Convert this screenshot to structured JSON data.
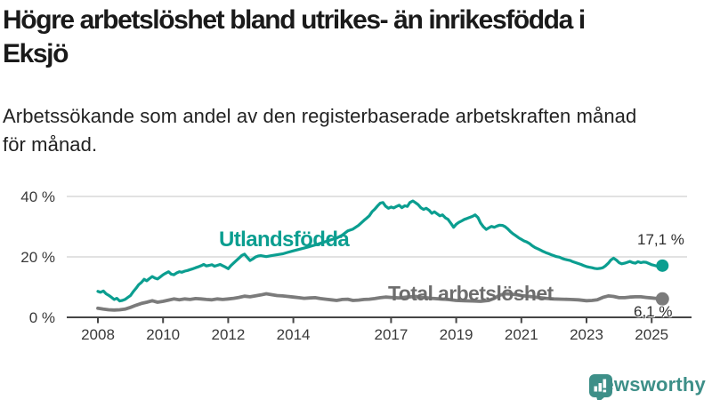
{
  "title_lines": [
    "Högre arbetslöshet bland utrikes- än inrikesfödda i",
    "Eksjö"
  ],
  "subtitle_lines": [
    "Arbetssökande som andel av den registerbaserade arbetskraften månad",
    "för månad."
  ],
  "branding": {
    "logo_text": "Newsworthy",
    "logo_icon": "newsworthy-bar-chart-bubble-icon"
  },
  "colors": {
    "background": "#ffffff",
    "accent_teal": "#0b9e90",
    "line_gray": "#7b7b7b",
    "grid": "#d9d9d9",
    "axis": "#454545",
    "tick_label": "#3a3a3a",
    "value_label": "#2d2d2d",
    "brand_teal": "#3d8f88"
  },
  "chart_data": {
    "type": "line",
    "unit": "%",
    "grid": "horizontal-only",
    "legend_position": "inline-labels",
    "x_axis": {
      "min": 2007.6,
      "max": 2026.2,
      "tick_years": [
        2008,
        2010,
        2012,
        2014,
        2017,
        2019,
        2021,
        2023,
        2025
      ],
      "tick_labels": [
        "2008",
        "2010",
        "2012",
        "2014",
        "2017",
        "2019",
        "2021",
        "2023",
        "2025"
      ]
    },
    "y_axis": {
      "min": 0,
      "max": 42,
      "tick_values": [
        0,
        20,
        40
      ],
      "tick_labels": [
        "0 %",
        "20 %",
        "40 %"
      ]
    },
    "series": [
      {
        "name": "Utlandsfödda",
        "color": "#0b9e90",
        "end_label": "17,1 %",
        "end_value": 17.1,
        "points": [
          [
            2008.0,
            8.6
          ],
          [
            2008.08,
            8.3
          ],
          [
            2008.17,
            8.7
          ],
          [
            2008.25,
            7.8
          ],
          [
            2008.33,
            7.3
          ],
          [
            2008.42,
            6.6
          ],
          [
            2008.5,
            5.9
          ],
          [
            2008.58,
            6.3
          ],
          [
            2008.67,
            5.4
          ],
          [
            2008.75,
            5.6
          ],
          [
            2008.83,
            5.9
          ],
          [
            2008.92,
            6.6
          ],
          [
            2009.0,
            7.2
          ],
          [
            2009.08,
            8.4
          ],
          [
            2009.17,
            9.6
          ],
          [
            2009.25,
            10.8
          ],
          [
            2009.33,
            11.5
          ],
          [
            2009.42,
            12.6
          ],
          [
            2009.5,
            12.1
          ],
          [
            2009.58,
            12.8
          ],
          [
            2009.67,
            13.5
          ],
          [
            2009.75,
            13.0
          ],
          [
            2009.83,
            12.7
          ],
          [
            2009.92,
            13.4
          ],
          [
            2010.0,
            14.1
          ],
          [
            2010.08,
            14.6
          ],
          [
            2010.17,
            15.1
          ],
          [
            2010.25,
            14.3
          ],
          [
            2010.33,
            14.1
          ],
          [
            2010.42,
            14.7
          ],
          [
            2010.5,
            15.1
          ],
          [
            2010.58,
            14.9
          ],
          [
            2010.67,
            15.3
          ],
          [
            2010.75,
            15.5
          ],
          [
            2010.83,
            15.8
          ],
          [
            2010.92,
            16.1
          ],
          [
            2011.0,
            16.4
          ],
          [
            2011.08,
            16.7
          ],
          [
            2011.17,
            17.1
          ],
          [
            2011.25,
            17.5
          ],
          [
            2011.33,
            17.0
          ],
          [
            2011.42,
            17.2
          ],
          [
            2011.5,
            17.4
          ],
          [
            2011.58,
            16.9
          ],
          [
            2011.67,
            17.2
          ],
          [
            2011.75,
            17.5
          ],
          [
            2011.83,
            17.1
          ],
          [
            2011.92,
            16.6
          ],
          [
            2012.0,
            16.1
          ],
          [
            2012.08,
            17.1
          ],
          [
            2012.17,
            18.0
          ],
          [
            2012.25,
            18.8
          ],
          [
            2012.33,
            19.6
          ],
          [
            2012.42,
            20.5
          ],
          [
            2012.5,
            20.9
          ],
          [
            2012.58,
            19.9
          ],
          [
            2012.67,
            18.8
          ],
          [
            2012.75,
            19.3
          ],
          [
            2012.83,
            19.9
          ],
          [
            2012.92,
            20.3
          ],
          [
            2013.0,
            20.4
          ],
          [
            2013.17,
            20.1
          ],
          [
            2013.33,
            20.4
          ],
          [
            2013.5,
            20.7
          ],
          [
            2013.67,
            21.0
          ],
          [
            2013.83,
            21.5
          ],
          [
            2014.0,
            22.0
          ],
          [
            2014.25,
            22.7
          ],
          [
            2014.5,
            23.4
          ],
          [
            2014.75,
            24.2
          ],
          [
            2015.0,
            25.1
          ],
          [
            2015.17,
            25.7
          ],
          [
            2015.33,
            26.2
          ],
          [
            2015.5,
            27.2
          ],
          [
            2015.67,
            28.6
          ],
          [
            2015.83,
            29.2
          ],
          [
            2016.0,
            30.4
          ],
          [
            2016.08,
            31.2
          ],
          [
            2016.17,
            32.1
          ],
          [
            2016.25,
            32.8
          ],
          [
            2016.33,
            33.6
          ],
          [
            2016.42,
            35.0
          ],
          [
            2016.5,
            35.8
          ],
          [
            2016.58,
            36.8
          ],
          [
            2016.67,
            37.8
          ],
          [
            2016.75,
            38.0
          ],
          [
            2016.83,
            36.8
          ],
          [
            2016.92,
            36.1
          ],
          [
            2017.0,
            36.5
          ],
          [
            2017.08,
            36.2
          ],
          [
            2017.17,
            36.7
          ],
          [
            2017.25,
            37.1
          ],
          [
            2017.33,
            36.3
          ],
          [
            2017.42,
            36.9
          ],
          [
            2017.5,
            36.7
          ],
          [
            2017.58,
            38.0
          ],
          [
            2017.67,
            38.5
          ],
          [
            2017.75,
            37.9
          ],
          [
            2017.83,
            37.3
          ],
          [
            2017.92,
            36.2
          ],
          [
            2018.0,
            35.7
          ],
          [
            2018.08,
            36.1
          ],
          [
            2018.17,
            35.4
          ],
          [
            2018.25,
            34.4
          ],
          [
            2018.33,
            34.9
          ],
          [
            2018.42,
            34.2
          ],
          [
            2018.5,
            33.6
          ],
          [
            2018.58,
            33.9
          ],
          [
            2018.67,
            32.9
          ],
          [
            2018.75,
            32.4
          ],
          [
            2018.83,
            31.2
          ],
          [
            2018.92,
            29.8
          ],
          [
            2019.0,
            30.8
          ],
          [
            2019.08,
            31.4
          ],
          [
            2019.17,
            31.9
          ],
          [
            2019.25,
            32.4
          ],
          [
            2019.33,
            32.7
          ],
          [
            2019.42,
            33.1
          ],
          [
            2019.5,
            33.4
          ],
          [
            2019.58,
            33.9
          ],
          [
            2019.67,
            33.0
          ],
          [
            2019.75,
            31.2
          ],
          [
            2019.83,
            30.0
          ],
          [
            2019.92,
            29.1
          ],
          [
            2020.0,
            29.6
          ],
          [
            2020.08,
            30.1
          ],
          [
            2020.17,
            29.8
          ],
          [
            2020.25,
            30.2
          ],
          [
            2020.33,
            30.5
          ],
          [
            2020.42,
            30.4
          ],
          [
            2020.5,
            30.0
          ],
          [
            2020.58,
            29.3
          ],
          [
            2020.67,
            28.3
          ],
          [
            2020.75,
            27.6
          ],
          [
            2020.83,
            27.0
          ],
          [
            2020.92,
            26.3
          ],
          [
            2021.0,
            25.8
          ],
          [
            2021.08,
            25.3
          ],
          [
            2021.17,
            24.9
          ],
          [
            2021.25,
            24.4
          ],
          [
            2021.33,
            23.7
          ],
          [
            2021.42,
            23.1
          ],
          [
            2021.5,
            22.7
          ],
          [
            2021.58,
            22.3
          ],
          [
            2021.67,
            21.8
          ],
          [
            2021.75,
            21.4
          ],
          [
            2021.83,
            21.1
          ],
          [
            2021.92,
            20.7
          ],
          [
            2022.0,
            20.4
          ],
          [
            2022.08,
            20.1
          ],
          [
            2022.17,
            19.9
          ],
          [
            2022.25,
            19.5
          ],
          [
            2022.33,
            19.2
          ],
          [
            2022.42,
            19.0
          ],
          [
            2022.5,
            18.8
          ],
          [
            2022.58,
            18.4
          ],
          [
            2022.67,
            18.1
          ],
          [
            2022.75,
            17.8
          ],
          [
            2022.83,
            17.5
          ],
          [
            2022.92,
            17.1
          ],
          [
            2023.0,
            16.8
          ],
          [
            2023.08,
            16.6
          ],
          [
            2023.17,
            16.4
          ],
          [
            2023.25,
            16.2
          ],
          [
            2023.33,
            16.1
          ],
          [
            2023.42,
            16.2
          ],
          [
            2023.5,
            16.4
          ],
          [
            2023.58,
            17.0
          ],
          [
            2023.67,
            17.9
          ],
          [
            2023.75,
            19.0
          ],
          [
            2023.83,
            19.6
          ],
          [
            2023.92,
            18.9
          ],
          [
            2024.0,
            18.1
          ],
          [
            2024.08,
            17.7
          ],
          [
            2024.17,
            17.9
          ],
          [
            2024.25,
            18.2
          ],
          [
            2024.33,
            18.5
          ],
          [
            2024.42,
            18.1
          ],
          [
            2024.5,
            17.9
          ],
          [
            2024.58,
            18.4
          ],
          [
            2024.67,
            18.1
          ],
          [
            2024.75,
            18.3
          ],
          [
            2024.83,
            18.2
          ],
          [
            2024.92,
            17.8
          ],
          [
            2025.0,
            17.4
          ],
          [
            2025.08,
            17.2
          ],
          [
            2025.17,
            16.9
          ],
          [
            2025.25,
            16.8
          ],
          [
            2025.33,
            17.1
          ]
        ]
      },
      {
        "name": "Total arbetslöshet",
        "color": "#7b7b7b",
        "end_label": "6,1 %",
        "end_value": 6.1,
        "points": [
          [
            2008.0,
            3.0
          ],
          [
            2008.17,
            2.7
          ],
          [
            2008.33,
            2.5
          ],
          [
            2008.5,
            2.4
          ],
          [
            2008.67,
            2.5
          ],
          [
            2008.83,
            2.7
          ],
          [
            2009.0,
            3.3
          ],
          [
            2009.17,
            4.0
          ],
          [
            2009.33,
            4.6
          ],
          [
            2009.5,
            5.0
          ],
          [
            2009.67,
            5.5
          ],
          [
            2009.83,
            5.0
          ],
          [
            2010.0,
            5.3
          ],
          [
            2010.17,
            5.7
          ],
          [
            2010.33,
            6.1
          ],
          [
            2010.5,
            5.8
          ],
          [
            2010.67,
            6.1
          ],
          [
            2010.83,
            5.9
          ],
          [
            2011.0,
            6.2
          ],
          [
            2011.17,
            6.1
          ],
          [
            2011.33,
            5.9
          ],
          [
            2011.5,
            5.8
          ],
          [
            2011.67,
            6.1
          ],
          [
            2011.83,
            5.9
          ],
          [
            2012.0,
            6.1
          ],
          [
            2012.17,
            6.3
          ],
          [
            2012.33,
            6.6
          ],
          [
            2012.5,
            7.0
          ],
          [
            2012.67,
            6.8
          ],
          [
            2012.83,
            7.1
          ],
          [
            2013.0,
            7.4
          ],
          [
            2013.17,
            7.8
          ],
          [
            2013.33,
            7.5
          ],
          [
            2013.5,
            7.2
          ],
          [
            2013.67,
            7.1
          ],
          [
            2013.83,
            6.9
          ],
          [
            2014.0,
            6.7
          ],
          [
            2014.17,
            6.5
          ],
          [
            2014.33,
            6.3
          ],
          [
            2014.5,
            6.4
          ],
          [
            2014.67,
            6.5
          ],
          [
            2014.83,
            6.2
          ],
          [
            2015.0,
            6.0
          ],
          [
            2015.17,
            5.8
          ],
          [
            2015.33,
            5.6
          ],
          [
            2015.5,
            5.9
          ],
          [
            2015.67,
            6.0
          ],
          [
            2015.83,
            5.6
          ],
          [
            2016.0,
            5.7
          ],
          [
            2016.17,
            5.9
          ],
          [
            2016.33,
            6.0
          ],
          [
            2016.5,
            6.2
          ],
          [
            2016.67,
            6.5
          ],
          [
            2016.83,
            6.7
          ],
          [
            2017.0,
            6.6
          ],
          [
            2017.25,
            6.4
          ],
          [
            2017.5,
            6.7
          ],
          [
            2017.75,
            6.9
          ],
          [
            2018.0,
            6.6
          ],
          [
            2018.25,
            6.3
          ],
          [
            2018.5,
            6.1
          ],
          [
            2018.75,
            5.9
          ],
          [
            2019.0,
            5.6
          ],
          [
            2019.25,
            5.5
          ],
          [
            2019.5,
            5.4
          ],
          [
            2019.75,
            5.3
          ],
          [
            2020.0,
            5.6
          ],
          [
            2020.17,
            6.3
          ],
          [
            2020.33,
            7.3
          ],
          [
            2020.5,
            7.8
          ],
          [
            2020.67,
            7.7
          ],
          [
            2020.83,
            7.5
          ],
          [
            2021.0,
            7.2
          ],
          [
            2021.25,
            6.9
          ],
          [
            2021.5,
            6.6
          ],
          [
            2021.75,
            6.3
          ],
          [
            2022.0,
            6.1
          ],
          [
            2022.25,
            6.0
          ],
          [
            2022.5,
            5.9
          ],
          [
            2022.75,
            5.8
          ],
          [
            2023.0,
            5.5
          ],
          [
            2023.17,
            5.6
          ],
          [
            2023.33,
            5.8
          ],
          [
            2023.5,
            6.6
          ],
          [
            2023.67,
            7.1
          ],
          [
            2023.83,
            6.9
          ],
          [
            2024.0,
            6.5
          ],
          [
            2024.17,
            6.5
          ],
          [
            2024.33,
            6.7
          ],
          [
            2024.5,
            6.8
          ],
          [
            2024.67,
            6.8
          ],
          [
            2024.83,
            6.6
          ],
          [
            2025.0,
            6.4
          ],
          [
            2025.17,
            6.2
          ],
          [
            2025.33,
            6.1
          ]
        ]
      }
    ]
  }
}
